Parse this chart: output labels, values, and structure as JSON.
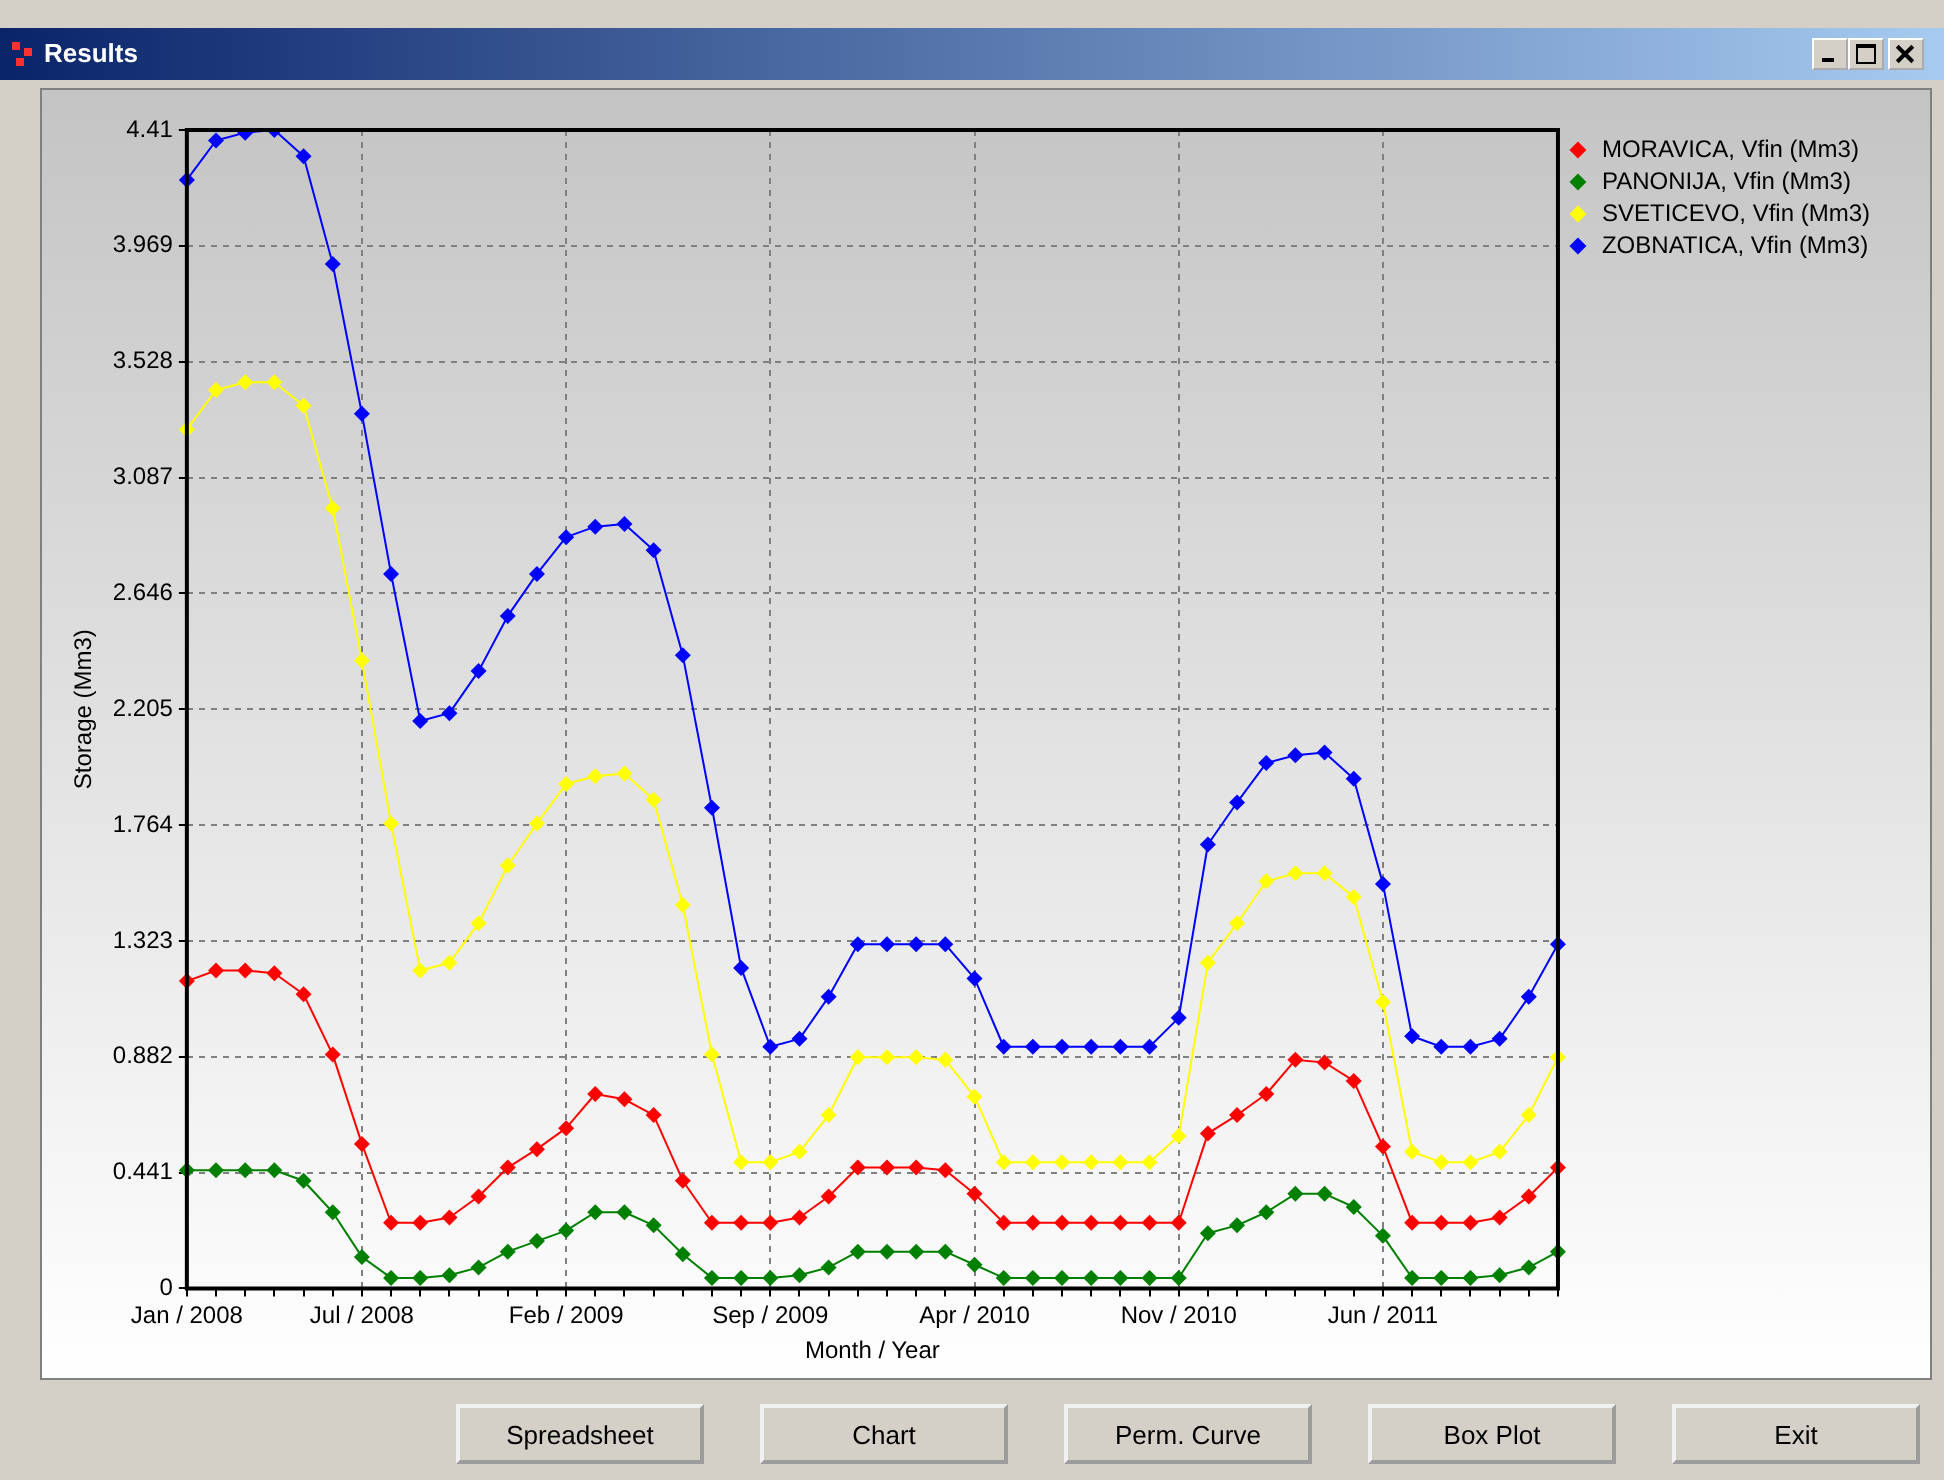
{
  "chart_data": {
    "type": "line",
    "title": "Results",
    "xlabel": "Month / Year",
    "ylabel": "Storage (Mm3)",
    "categories": [
      "Jan / 2008",
      null,
      null,
      null,
      null,
      null,
      "Jul / 2008",
      null,
      null,
      null,
      null,
      null,
      null,
      "Feb / 2009",
      null,
      null,
      null,
      null,
      null,
      null,
      "Sep / 2009",
      null,
      null,
      null,
      null,
      null,
      null,
      "Apr / 2010",
      null,
      null,
      null,
      null,
      null,
      null,
      "Nov / 2010",
      null,
      null,
      null,
      null,
      null,
      null,
      "Jun / 2011",
      null,
      null,
      null,
      null,
      null,
      null
    ],
    "series": [
      {
        "name": "MORAVICA, Vfin (Mm3)",
        "color": "#ff0000",
        "values": [
          1.17,
          1.21,
          1.21,
          1.2,
          1.12,
          0.89,
          0.55,
          0.25,
          0.25,
          0.27,
          0.35,
          0.46,
          0.53,
          0.61,
          0.74,
          0.72,
          0.66,
          0.41,
          0.25,
          0.25,
          0.25,
          0.27,
          0.35,
          0.46,
          0.46,
          0.46,
          0.45,
          0.36,
          0.25,
          0.25,
          0.25,
          0.25,
          0.25,
          0.25,
          0.25,
          0.59,
          0.66,
          0.74,
          0.87,
          0.86,
          0.79,
          0.54,
          0.25,
          0.25,
          0.25,
          0.27,
          0.35,
          0.46
        ]
      },
      {
        "name": "PANONIJA, Vfin (Mm3)",
        "color": "#008000",
        "values": [
          0.45,
          0.45,
          0.45,
          0.45,
          0.41,
          0.29,
          0.12,
          0.04,
          0.04,
          0.05,
          0.08,
          0.14,
          0.18,
          0.22,
          0.29,
          0.29,
          0.24,
          0.13,
          0.04,
          0.04,
          0.04,
          0.05,
          0.08,
          0.14,
          0.14,
          0.14,
          0.14,
          0.09,
          0.04,
          0.04,
          0.04,
          0.04,
          0.04,
          0.04,
          0.04,
          0.21,
          0.24,
          0.29,
          0.36,
          0.36,
          0.31,
          0.2,
          0.04,
          0.04,
          0.04,
          0.05,
          0.08,
          0.14
        ]
      },
      {
        "name": "SVETICEVO, Vfin (Mm3)",
        "color": "#ffff00",
        "values": [
          3.27,
          3.42,
          3.45,
          3.45,
          3.36,
          2.97,
          2.39,
          1.77,
          1.21,
          1.24,
          1.39,
          1.61,
          1.77,
          1.92,
          1.95,
          1.96,
          1.86,
          1.46,
          0.89,
          0.48,
          0.48,
          0.52,
          0.66,
          0.88,
          0.88,
          0.88,
          0.87,
          0.73,
          0.48,
          0.48,
          0.48,
          0.48,
          0.48,
          0.48,
          0.58,
          1.24,
          1.39,
          1.55,
          1.58,
          1.58,
          1.49,
          1.09,
          0.52,
          0.48,
          0.48,
          0.52,
          0.66,
          0.88
        ]
      },
      {
        "name": "ZOBNATICA, Vfin (Mm3)",
        "color": "#0000ff",
        "values": [
          4.22,
          4.37,
          4.4,
          4.41,
          4.31,
          3.9,
          3.33,
          2.72,
          2.16,
          2.19,
          2.35,
          2.56,
          2.72,
          2.86,
          2.9,
          2.91,
          2.81,
          2.41,
          1.83,
          1.22,
          0.92,
          0.95,
          1.11,
          1.31,
          1.31,
          1.31,
          1.31,
          1.18,
          0.92,
          0.92,
          0.92,
          0.92,
          0.92,
          0.92,
          1.03,
          1.69,
          1.85,
          2.0,
          2.03,
          2.04,
          1.94,
          1.54,
          0.96,
          0.92,
          0.92,
          0.95,
          1.11,
          1.31
        ]
      }
    ],
    "ylim": [
      0,
      4.41
    ],
    "yticks": [
      0,
      0.441,
      0.882,
      1.323,
      1.764,
      2.205,
      2.646,
      3.087,
      3.528,
      3.969,
      4.41
    ],
    "grid": true,
    "legend": "top right",
    "marker": "diamond",
    "line_style": "solid",
    "annotations": [
      "Spreadsheet",
      "Chart",
      "Perm. Curve",
      "Box Plot",
      "Exit"
    ]
  }
}
